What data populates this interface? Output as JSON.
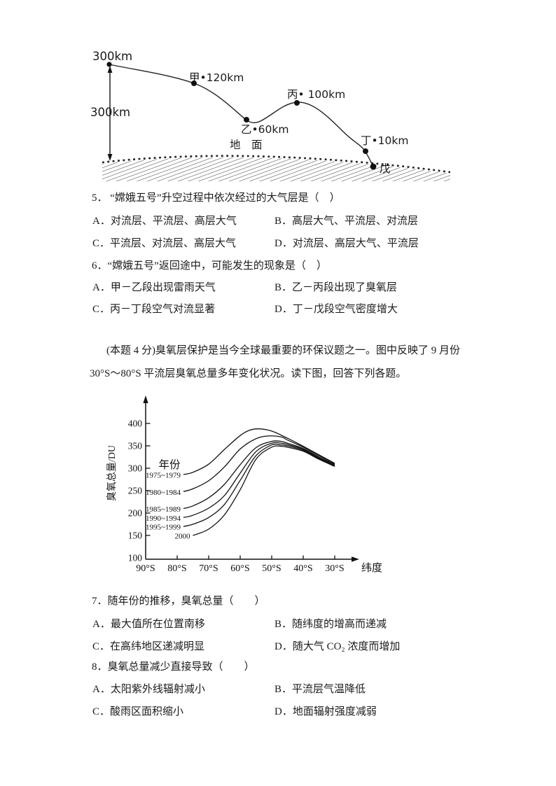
{
  "page": {
    "background": "#ffffff",
    "text_color": "#1b1b1b",
    "line_color": "#222222"
  },
  "diagram": {
    "description": "Chang'e-5 flight trajectory over ground with labeled altitude points",
    "altitude_top_label": "300km",
    "altitude_mid_label": "300km",
    "ground_label": "地　面",
    "point_labels": {
      "jia": "甲•120km",
      "yi": "乙•60km",
      "bing": "丙• 100km",
      "ding": "丁•10km",
      "wu": "戊"
    }
  },
  "questions": [
    {
      "stem": "5． “嫦娥五号”升空过程中依次经过的大气层是（　）",
      "options": [
        "A．对流层、平流层、高层大气",
        "B．高层大气、平流层、对流层",
        "C．平流层、对流层、高层大气",
        "D．对流层、高层大气、平流层"
      ]
    },
    {
      "stem": "6．“嫦娥五号”返回途中，可能发生的现象是（　）",
      "options": [
        "A．甲－乙段出现雷雨天气",
        "B．乙－丙段出现了臭氧层",
        "C．丙－丁段空气对流显著",
        "D．丁－戊段空气密度增大"
      ]
    },
    {
      "stem": "7．随年份的推移，臭氧总量（　　）",
      "options": [
        "A．最大值所在位置南移",
        "B．随纬度的增高而递减",
        "C．在高纬地区递减明显",
        "D．随大气 CO₂ 浓度而增加"
      ]
    },
    {
      "stem": "8．臭氧总量减少直接导致（　　）",
      "options": [
        "A．太阳紫外线辐射减小",
        "B．平流层气温降低",
        "C．酸雨区面积缩小",
        "D．地面辐射强度减弱"
      ]
    }
  ],
  "passage": {
    "lines": [
      "(本题 4 分)臭氧层保护是当今全球最重要的环保议题之一。图中反映了 9 月份",
      "30°S～80°S 平流层臭氧总量多年变化状况。读下图，回答下列各题。"
    ]
  },
  "chart_data": {
    "type": "line",
    "title": "",
    "ylabel": "臭氧总量/DU",
    "xlabel": "纬度",
    "legend_title": "年份",
    "legend_position": "left-inside",
    "grid": false,
    "ylim": [
      100,
      400
    ],
    "y_ticks": [
      100,
      150,
      200,
      250,
      300,
      350,
      400
    ],
    "x_tick_values": [
      90,
      80,
      70,
      60,
      50,
      40,
      30
    ],
    "x_tick_labels": [
      "90°S",
      "80°S",
      "70°S",
      "60°S",
      "50°S",
      "40°S",
      "30°S"
    ],
    "x_unit": "degrees latitude (south)",
    "y_unit": "DU",
    "series": [
      {
        "name": "1975~1979",
        "points": [
          [
            78,
            286
          ],
          [
            75,
            291
          ],
          [
            70,
            309
          ],
          [
            65,
            342
          ],
          [
            60,
            373
          ],
          [
            57,
            385
          ],
          [
            54,
            388
          ],
          [
            50,
            383
          ],
          [
            45,
            367
          ],
          [
            40,
            349
          ],
          [
            35,
            330
          ],
          [
            30,
            311
          ]
        ]
      },
      {
        "name": "1980~1984",
        "points": [
          [
            78,
            248
          ],
          [
            75,
            254
          ],
          [
            70,
            272
          ],
          [
            65,
            303
          ],
          [
            60,
            343
          ],
          [
            55,
            366
          ],
          [
            51,
            372
          ],
          [
            47,
            370
          ],
          [
            45,
            363
          ],
          [
            40,
            347
          ],
          [
            35,
            328
          ],
          [
            30,
            309
          ]
        ]
      },
      {
        "name": "1985~1989",
        "points": [
          [
            78,
            210
          ],
          [
            75,
            216
          ],
          [
            70,
            234
          ],
          [
            65,
            264
          ],
          [
            60,
            308
          ],
          [
            55,
            346
          ],
          [
            50,
            360
          ],
          [
            47,
            360
          ],
          [
            45,
            356
          ],
          [
            40,
            344
          ],
          [
            35,
            325
          ],
          [
            30,
            307
          ]
        ]
      },
      {
        "name": "1990~1994",
        "points": [
          [
            78,
            190
          ],
          [
            75,
            195
          ],
          [
            70,
            211
          ],
          [
            65,
            239
          ],
          [
            60,
            289
          ],
          [
            55,
            337
          ],
          [
            50,
            356
          ],
          [
            47,
            356
          ],
          [
            45,
            353
          ],
          [
            40,
            342
          ],
          [
            35,
            323
          ],
          [
            30,
            306
          ]
        ]
      },
      {
        "name": "1995~1999",
        "points": [
          [
            78,
            170
          ],
          [
            75,
            175
          ],
          [
            70,
            190
          ],
          [
            65,
            219
          ],
          [
            60,
            273
          ],
          [
            55,
            328
          ],
          [
            50,
            352
          ],
          [
            47,
            352
          ],
          [
            45,
            350
          ],
          [
            40,
            340
          ],
          [
            35,
            321
          ],
          [
            30,
            305
          ]
        ]
      },
      {
        "name": "2000",
        "points": [
          [
            75,
            150
          ],
          [
            70,
            164
          ],
          [
            65,
            196
          ],
          [
            60,
            252
          ],
          [
            55,
            320
          ],
          [
            50,
            347
          ],
          [
            47,
            349
          ],
          [
            45,
            347
          ],
          [
            40,
            338
          ],
          [
            35,
            320
          ],
          [
            30,
            304
          ]
        ]
      }
    ]
  }
}
